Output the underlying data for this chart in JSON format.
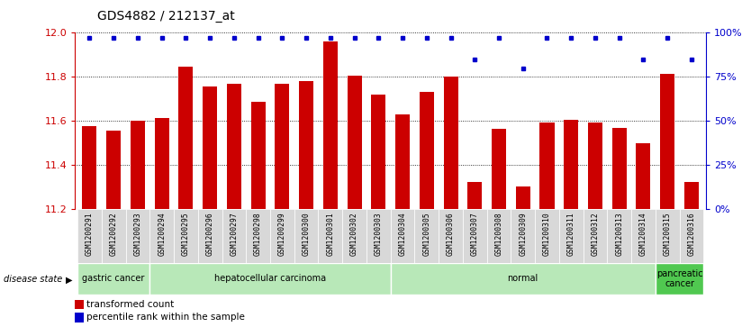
{
  "title": "GDS4882 / 212137_at",
  "samples": [
    "GSM1200291",
    "GSM1200292",
    "GSM1200293",
    "GSM1200294",
    "GSM1200295",
    "GSM1200296",
    "GSM1200297",
    "GSM1200298",
    "GSM1200299",
    "GSM1200300",
    "GSM1200301",
    "GSM1200302",
    "GSM1200303",
    "GSM1200304",
    "GSM1200305",
    "GSM1200306",
    "GSM1200307",
    "GSM1200308",
    "GSM1200309",
    "GSM1200310",
    "GSM1200311",
    "GSM1200312",
    "GSM1200313",
    "GSM1200314",
    "GSM1200315",
    "GSM1200316"
  ],
  "bar_values": [
    11.575,
    11.555,
    11.6,
    11.615,
    11.845,
    11.755,
    11.77,
    11.685,
    11.77,
    11.78,
    11.96,
    11.805,
    11.72,
    11.63,
    11.73,
    11.8,
    11.325,
    11.565,
    11.305,
    11.595,
    11.605,
    11.595,
    11.57,
    11.5,
    11.815,
    11.325
  ],
  "percentile_values": [
    97,
    97,
    97,
    97,
    97,
    97,
    97,
    97,
    97,
    97,
    97,
    97,
    97,
    97,
    97,
    97,
    85,
    97,
    80,
    97,
    97,
    97,
    97,
    85,
    97,
    85
  ],
  "group_defs": [
    {
      "start": 0,
      "end": 2,
      "color": "#b8e8b8",
      "label": "gastric cancer"
    },
    {
      "start": 3,
      "end": 12,
      "color": "#b8e8b8",
      "label": "hepatocellular carcinoma"
    },
    {
      "start": 13,
      "end": 23,
      "color": "#b8e8b8",
      "label": "normal"
    },
    {
      "start": 24,
      "end": 25,
      "color": "#50c850",
      "label": "pancreatic\ncancer"
    }
  ],
  "ymin": 11.2,
  "ymax": 12.0,
  "yticks_left": [
    11.2,
    11.4,
    11.6,
    11.8,
    12.0
  ],
  "right_ticks_pct": [
    0,
    25,
    50,
    75,
    100
  ],
  "bar_color": "#cc0000",
  "percentile_color": "#0000cc",
  "legend_red_label": "transformed count",
  "legend_blue_label": "percentile rank within the sample"
}
